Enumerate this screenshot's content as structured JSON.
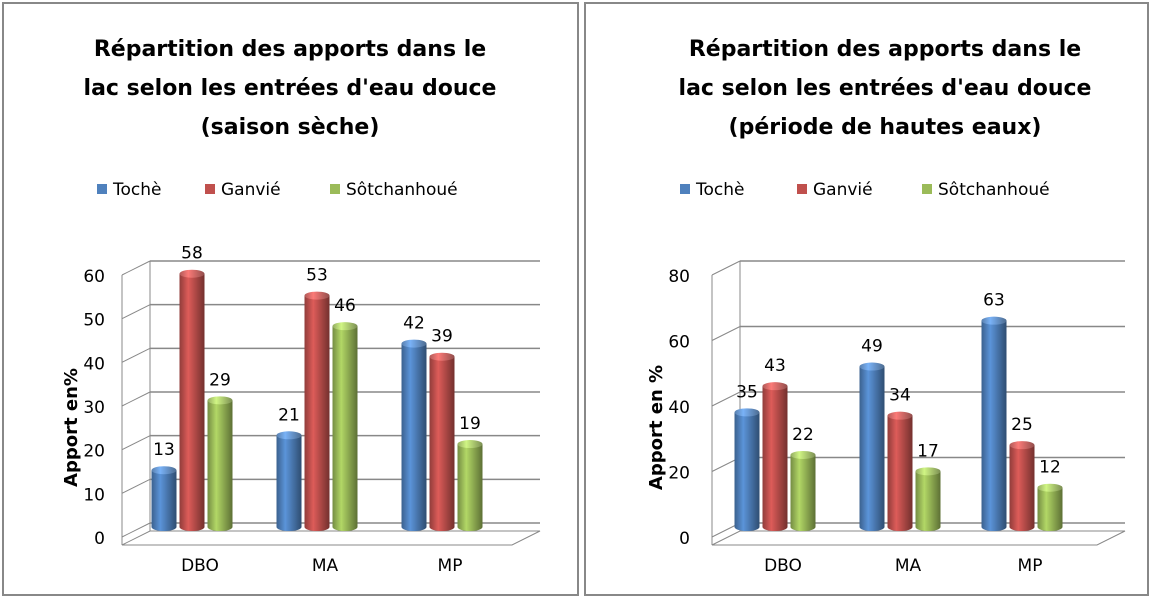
{
  "chart_data": [
    {
      "type": "bar3d",
      "title": [
        "Répartition des apports dans le",
        "lac selon les entrées d'eau douce",
        "(saison sèche)"
      ],
      "y_label": "Apport en%",
      "categories": [
        "DBO",
        "MA",
        "MP"
      ],
      "series": [
        {
          "name": "Tochè",
          "color": "#4f81bd",
          "values": [
            13,
            21,
            42
          ]
        },
        {
          "name": "Ganvié",
          "color": "#c0504d",
          "values": [
            58,
            53,
            39
          ]
        },
        {
          "name": "Sôtchanhoué",
          "color": "#9bbb59",
          "values": [
            29,
            46,
            19
          ]
        }
      ],
      "ylim": [
        0,
        60
      ],
      "yticks": [
        0,
        10,
        20,
        30,
        40,
        50,
        60
      ],
      "grid": true
    },
    {
      "type": "bar3d",
      "title": [
        "Répartition des apports dans le",
        "lac selon les entrées d'eau douce",
        "(période de hautes eaux)"
      ],
      "y_label": "Apport en %",
      "categories": [
        "DBO",
        "MA",
        "MP"
      ],
      "series": [
        {
          "name": "Tochè",
          "color": "#4f81bd",
          "values": [
            35,
            49,
            63
          ]
        },
        {
          "name": "Ganvié",
          "color": "#c0504d",
          "values": [
            43,
            34,
            25
          ]
        },
        {
          "name": "Sôtchanhoué",
          "color": "#9bbb59",
          "values": [
            22,
            17,
            12
          ]
        }
      ],
      "ylim": [
        0,
        80
      ],
      "yticks": [
        0,
        20,
        40,
        60,
        80
      ],
      "grid": true
    }
  ]
}
